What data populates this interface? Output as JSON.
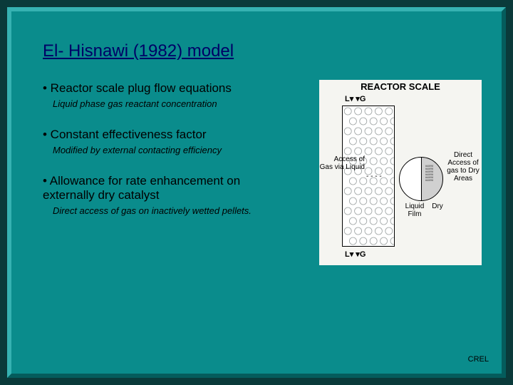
{
  "colors": {
    "outer_frame": "#0a3a3a",
    "bevel_light": "#36b2b2",
    "bevel_dark": "#045c5c",
    "panel": "#0a8c8c",
    "title_color": "#000066",
    "text_color": "#000000",
    "diagram_bg": "#f5f5f1",
    "particle_wet": "#ffffff",
    "particle_dry": "#d0d0d0"
  },
  "title": "El- Hisnawi (1982) model",
  "bullets": [
    {
      "main": "• Reactor scale plug flow equations",
      "sub": "Liquid phase gas reactant concentration"
    },
    {
      "main": "• Constant effectiveness factor",
      "sub": "Modified by external contacting efficiency"
    },
    {
      "main": "• Allowance for rate enhancement on externally dry catalyst",
      "sub": "Direct access of gas on inactively wetted pellets."
    }
  ],
  "diagram": {
    "title": "REACTOR SCALE",
    "top_lg": "L▾  ▾G",
    "bottom_lg": "L▾  ▾G",
    "label_access_left": "Access of Gas via Liquid",
    "dash": "- - - -",
    "label_access_right": "Direct Access of gas to Dry Areas",
    "label_liquid": "Liquid Film",
    "label_dry": "Dry",
    "column": {
      "bubble_rows": 14,
      "bubble_cols": 5,
      "bubble_radius": 5,
      "bubble_stroke": "#9aa0a0",
      "bubble_fill": "#ffffff"
    }
  },
  "footer": "CREL"
}
